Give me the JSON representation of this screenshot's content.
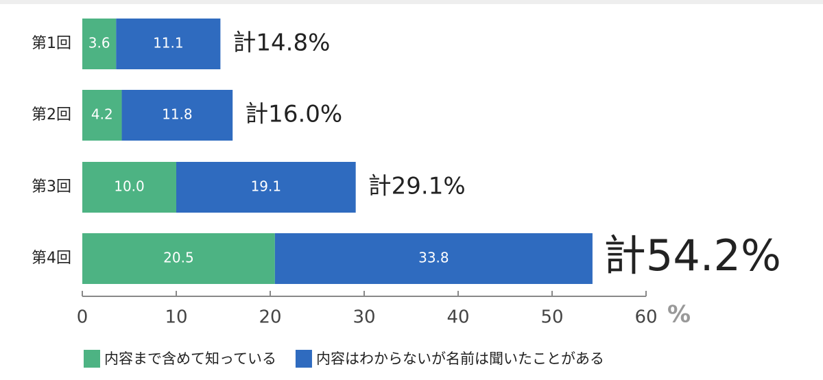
{
  "chart_data": {
    "type": "stacked-bar-horizontal",
    "categories": [
      "第1回",
      "第2回",
      "第3回",
      "第4回"
    ],
    "series": [
      {
        "name": "内容まで含めて知っている",
        "color": "#4db383",
        "values": [
          3.6,
          4.2,
          10.0,
          20.5
        ],
        "value_labels": [
          "3.6",
          "4.2",
          "10.0",
          "20.5"
        ]
      },
      {
        "name": "内容はわからないが名前は聞いたことがある",
        "color": "#2f6bbf",
        "values": [
          11.1,
          11.8,
          19.1,
          33.8
        ],
        "value_labels": [
          "11.1",
          "11.8",
          "19.1",
          "33.8"
        ]
      }
    ],
    "total_labels": [
      "計14.8%",
      "計16.0%",
      "計29.1%",
      "計54.2%"
    ],
    "xlabel": "%",
    "xlim": [
      0,
      60
    ],
    "xticks": [
      0,
      10,
      20,
      30,
      40,
      50,
      60
    ]
  }
}
